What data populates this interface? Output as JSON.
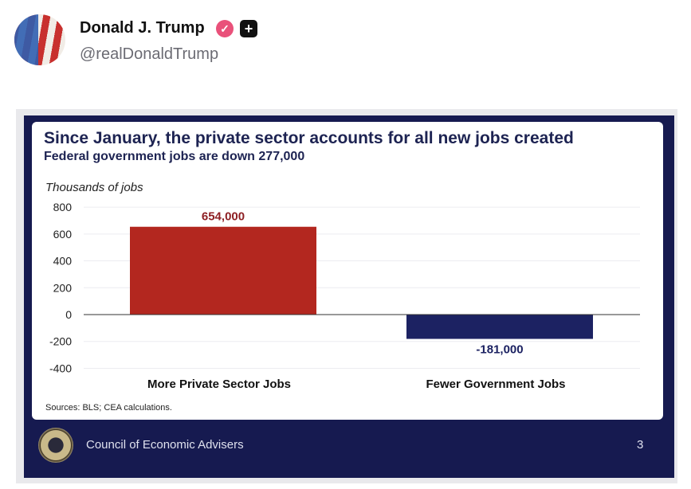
{
  "post": {
    "author": "Donald J. Trump",
    "handle": "@realDonaldTrump",
    "verified_icon": "verified-badge-icon",
    "extra_icon": "plus-badge-icon",
    "badge_color": "#e9517a"
  },
  "slide": {
    "title": "Since January, the private sector accounts for all new jobs created",
    "subtitle": "Federal government jobs are down 277,000",
    "sources": "Sources: BLS; CEA calculations.",
    "footer": "Council of Economic Advisers",
    "page_number": "3"
  },
  "chart_data": {
    "type": "bar",
    "ylabel": "Thousands of jobs",
    "categories": [
      "More Private Sector Jobs",
      "Fewer Government Jobs"
    ],
    "values": [
      654,
      -181
    ],
    "data_labels": [
      "654,000",
      "-181,000"
    ],
    "colors": [
      "#b3271f",
      "#1c2262"
    ],
    "yticks": [
      "800",
      "600",
      "400",
      "200",
      "0",
      "-200",
      "-400"
    ],
    "ylim": [
      -400,
      800
    ],
    "grid": true
  }
}
